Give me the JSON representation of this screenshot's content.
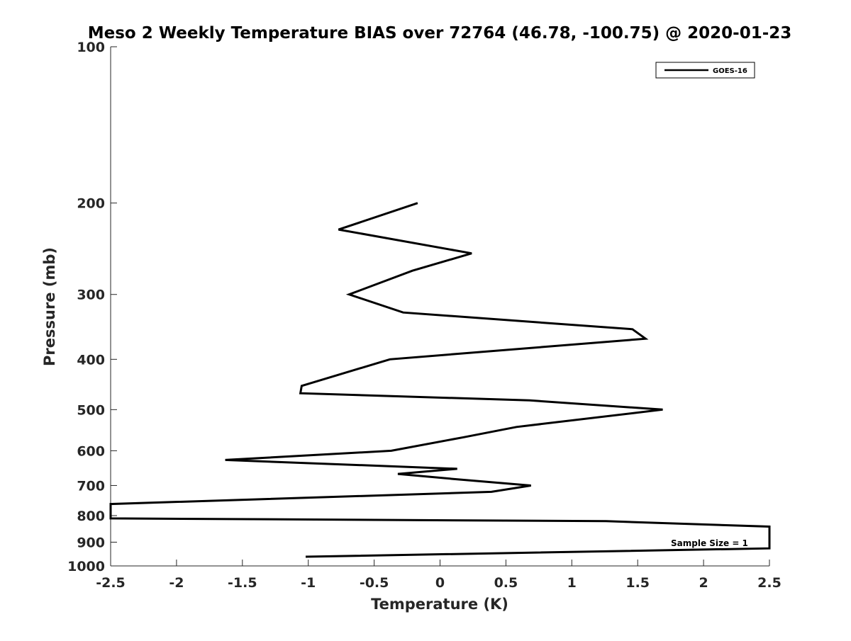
{
  "chart_data": {
    "type": "line",
    "title": "Meso 2 Weekly Temperature BIAS over 72764 (46.78, -100.75) @ 2020-01-23",
    "xlabel": "Temperature (K)",
    "ylabel": "Pressure (mb)",
    "xlim": [
      -2.5,
      2.5
    ],
    "ylim": [
      1000,
      100
    ],
    "y_scale": "log",
    "y_reversed": true,
    "grid": false,
    "legend_position": "top-right",
    "x_ticks": [
      "-2.5",
      "-2",
      "-1.5",
      "-1",
      "-0.5",
      "0",
      "0.5",
      "1",
      "1.5",
      "2",
      "2.5"
    ],
    "y_ticks": [
      "100",
      "200",
      "300",
      "400",
      "500",
      "600",
      "700",
      "800",
      "900",
      "1000"
    ],
    "annotation": "Sample Size = 1",
    "series": [
      {
        "name": "GOES-16",
        "color": "#000000",
        "points": [
          {
            "x": -0.17,
            "y": 200
          },
          {
            "x": -0.77,
            "y": 225
          },
          {
            "x": 0.24,
            "y": 250
          },
          {
            "x": -0.21,
            "y": 270
          },
          {
            "x": -0.69,
            "y": 300
          },
          {
            "x": -0.28,
            "y": 325
          },
          {
            "x": 1.46,
            "y": 350
          },
          {
            "x": 1.56,
            "y": 365
          },
          {
            "x": -0.38,
            "y": 400
          },
          {
            "x": -1.05,
            "y": 450
          },
          {
            "x": -1.06,
            "y": 465
          },
          {
            "x": 0.68,
            "y": 480
          },
          {
            "x": 1.69,
            "y": 500
          },
          {
            "x": 0.58,
            "y": 540
          },
          {
            "x": 0.18,
            "y": 565
          },
          {
            "x": -0.37,
            "y": 600
          },
          {
            "x": -1.63,
            "y": 625
          },
          {
            "x": 0.13,
            "y": 650
          },
          {
            "x": -0.32,
            "y": 665
          },
          {
            "x": 0.1,
            "y": 680
          },
          {
            "x": 0.69,
            "y": 700
          },
          {
            "x": 0.39,
            "y": 720
          },
          {
            "x": -2.5,
            "y": 760
          },
          {
            "x": -2.5,
            "y": 810
          },
          {
            "x": 1.26,
            "y": 820
          },
          {
            "x": 2.5,
            "y": 840
          },
          {
            "x": 2.5,
            "y": 925
          },
          {
            "x": -1.02,
            "y": 960
          }
        ]
      }
    ]
  }
}
